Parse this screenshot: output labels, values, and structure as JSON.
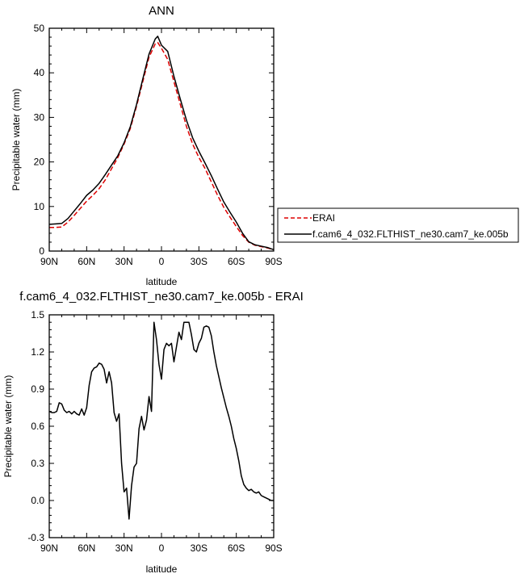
{
  "chart_data": [
    {
      "type": "line",
      "title": "ANN",
      "xlabel": "latitude",
      "ylabel": "Precipitable water (mm)",
      "xlim": [
        90,
        -90
      ],
      "ylim": [
        0,
        50
      ],
      "xticks": [
        90,
        60,
        30,
        0,
        -30,
        -60,
        -90
      ],
      "xtick_labels": [
        "90N",
        "60N",
        "30N",
        "0",
        "30S",
        "60S",
        "90S"
      ],
      "yticks": [
        0,
        10,
        20,
        30,
        40,
        50
      ],
      "ytick_labels": [
        "0",
        "10",
        "20",
        "30",
        "40",
        "50"
      ],
      "legend_placement": "outside-right",
      "series": [
        {
          "name": "ERAI",
          "color": "#dd0000",
          "dash": "dashed",
          "x": [
            90,
            85,
            80,
            75,
            70,
            65,
            60,
            55,
            50,
            45,
            40,
            35,
            30,
            25,
            20,
            15,
            10,
            5,
            3,
            0,
            -5,
            -10,
            -15,
            -20,
            -25,
            -30,
            -35,
            -40,
            -45,
            -50,
            -55,
            -60,
            -65,
            -70,
            -75,
            -80,
            -85,
            -90
          ],
          "y": [
            5.3,
            5.3,
            5.4,
            6.5,
            8.0,
            9.6,
            11.2,
            12.5,
            14.0,
            16.0,
            18.5,
            21.0,
            24.0,
            27.5,
            32.5,
            38.0,
            43.5,
            46.5,
            46.8,
            45.5,
            43.0,
            38.0,
            33.0,
            28.0,
            24.0,
            21.0,
            18.5,
            15.5,
            12.5,
            9.8,
            7.6,
            5.5,
            3.5,
            2.0,
            1.3,
            1.0,
            0.7,
            0.3
          ]
        },
        {
          "name": "f.cam6_4_032.FLTHIST_ne30.cam7_ke.005b",
          "color": "#000000",
          "dash": "solid",
          "x": [
            90,
            85,
            80,
            75,
            70,
            65,
            60,
            55,
            50,
            45,
            40,
            35,
            30,
            25,
            20,
            15,
            10,
            5,
            3,
            0,
            -5,
            -10,
            -15,
            -20,
            -25,
            -30,
            -35,
            -40,
            -45,
            -50,
            -55,
            -60,
            -65,
            -70,
            -75,
            -80,
            -85,
            -90
          ],
          "y": [
            6.0,
            6.1,
            6.2,
            7.3,
            9.0,
            10.7,
            12.5,
            13.7,
            15.2,
            17.2,
            19.3,
            21.4,
            24.3,
            27.9,
            32.9,
            38.6,
            44.2,
            47.6,
            48.2,
            46.2,
            44.8,
            39.2,
            34.2,
            29.4,
            25.4,
            22.4,
            19.7,
            16.9,
            13.9,
            11.0,
            8.7,
            6.5,
            4.0,
            2.1,
            1.4,
            1.1,
            0.8,
            0.3
          ]
        }
      ]
    },
    {
      "type": "line",
      "title": "f.cam6_4_032.FLTHIST_ne30.cam7_ke.005b - ERAI",
      "xlabel": "latitude",
      "ylabel": "Precipitable water (mm)",
      "xlim": [
        90,
        -90
      ],
      "ylim": [
        -0.3,
        1.5
      ],
      "xticks": [
        90,
        60,
        30,
        0,
        -30,
        -60,
        -90
      ],
      "xtick_labels": [
        "90N",
        "60N",
        "30N",
        "0",
        "30S",
        "60S",
        "90S"
      ],
      "yticks": [
        -0.3,
        0.0,
        0.3,
        0.6,
        0.9,
        1.2,
        1.5
      ],
      "ytick_labels": [
        "-0.3",
        "0.0",
        "0.3",
        "0.6",
        "0.9",
        "1.2",
        "1.5"
      ],
      "series": [
        {
          "color": "#000000",
          "dash": "solid",
          "x": [
            90,
            88,
            86,
            84,
            82,
            80,
            78,
            76,
            74,
            72,
            70,
            68,
            66,
            64,
            62,
            60,
            58,
            56,
            54,
            52,
            50,
            48,
            46,
            44,
            42,
            40,
            38,
            36,
            34,
            32,
            30,
            28,
            26,
            24,
            22,
            20,
            18,
            16,
            14,
            12,
            10,
            8,
            6,
            4,
            2,
            0,
            -2,
            -4,
            -6,
            -8,
            -10,
            -12,
            -14,
            -16,
            -18,
            -20,
            -22,
            -24,
            -26,
            -28,
            -30,
            -32,
            -34,
            -36,
            -38,
            -40,
            -42,
            -44,
            -46,
            -48,
            -50,
            -52,
            -54,
            -56,
            -58,
            -60,
            -62,
            -64,
            -66,
            -68,
            -70,
            -72,
            -74,
            -76,
            -78,
            -80,
            -82,
            -84,
            -86,
            -88,
            -90
          ],
          "y": [
            0.72,
            0.71,
            0.71,
            0.72,
            0.79,
            0.78,
            0.73,
            0.71,
            0.72,
            0.7,
            0.72,
            0.7,
            0.69,
            0.74,
            0.69,
            0.75,
            0.93,
            1.04,
            1.07,
            1.08,
            1.11,
            1.1,
            1.06,
            0.95,
            1.04,
            0.95,
            0.71,
            0.64,
            0.7,
            0.3,
            0.07,
            0.1,
            -0.15,
            0.12,
            0.27,
            0.3,
            0.58,
            0.68,
            0.57,
            0.65,
            0.84,
            0.72,
            1.44,
            1.3,
            1.1,
            0.98,
            1.22,
            1.27,
            1.25,
            1.27,
            1.12,
            1.24,
            1.36,
            1.3,
            1.44,
            1.44,
            1.44,
            1.34,
            1.22,
            1.2,
            1.27,
            1.31,
            1.4,
            1.41,
            1.4,
            1.33,
            1.2,
            1.09,
            1.0,
            0.91,
            0.83,
            0.75,
            0.68,
            0.6,
            0.5,
            0.42,
            0.32,
            0.2,
            0.13,
            0.1,
            0.08,
            0.09,
            0.07,
            0.06,
            0.07,
            0.04,
            0.03,
            0.02,
            0.01,
            0.0,
            0.0
          ]
        }
      ]
    }
  ]
}
